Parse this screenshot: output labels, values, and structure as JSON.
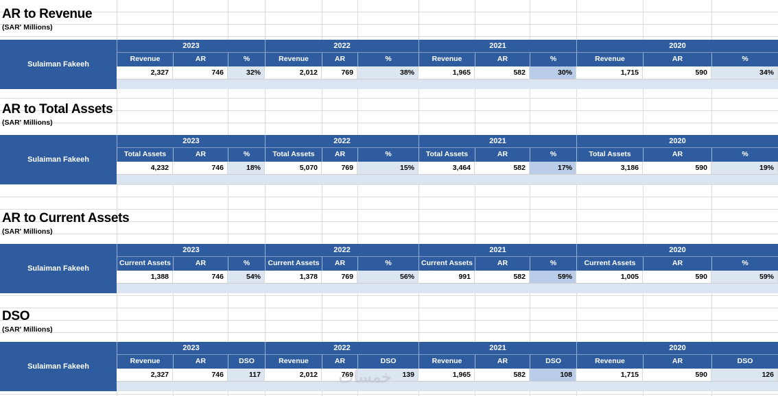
{
  "sheet": {
    "company": "Sulaiman Fakeeh",
    "units": "(SAR' Millions)",
    "years": [
      "2023",
      "2022",
      "2021",
      "2020"
    ],
    "watermark": "خمسات",
    "colors": {
      "header_blue": "#2e5c9e",
      "ratio_fill": "#dce6f1",
      "ratio_fill_2021": "#b9cde8",
      "footer_band": "#dbe5f1",
      "gridline": "#dcdcdc"
    }
  },
  "tables": [
    {
      "title": "AR to Revenue",
      "headers": [
        "Revenue",
        "AR",
        "%"
      ],
      "values": [
        [
          "2,327",
          "746",
          "32%"
        ],
        [
          "2,012",
          "769",
          "38%"
        ],
        [
          "1,965",
          "582",
          "30%"
        ],
        [
          "1,715",
          "590",
          "34%"
        ]
      ]
    },
    {
      "title": "AR to Total Assets",
      "headers": [
        "Total Assets",
        "AR",
        "%"
      ],
      "values": [
        [
          "4,232",
          "746",
          "18%"
        ],
        [
          "5,070",
          "769",
          "15%"
        ],
        [
          "3,464",
          "582",
          "17%"
        ],
        [
          "3,186",
          "590",
          "19%"
        ]
      ]
    },
    {
      "title": "AR to Current Assets",
      "headers": [
        "Current Assets",
        "AR",
        "%"
      ],
      "values": [
        [
          "1,388",
          "746",
          "54%"
        ],
        [
          "1,378",
          "769",
          "56%"
        ],
        [
          "991",
          "582",
          "59%"
        ],
        [
          "1,005",
          "590",
          "59%"
        ]
      ]
    },
    {
      "title": "DSO",
      "headers": [
        "Revenue",
        "AR",
        "DSO"
      ],
      "values": [
        [
          "2,327",
          "746",
          "117"
        ],
        [
          "2,012",
          "769",
          "139"
        ],
        [
          "1,965",
          "582",
          "108"
        ],
        [
          "1,715",
          "590",
          "126"
        ]
      ]
    }
  ]
}
